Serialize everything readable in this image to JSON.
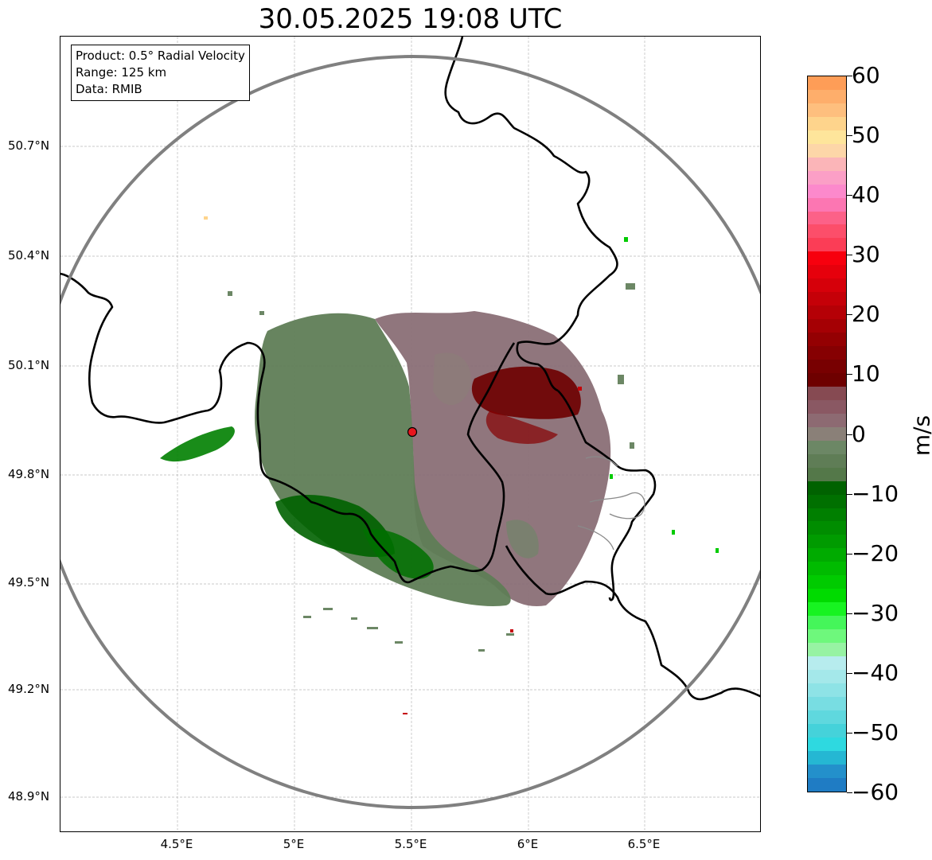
{
  "title": "30.05.2025 19:08 UTC",
  "info": {
    "product": "Product: 0.5° Radial Velocity",
    "range": "Range: 125 km",
    "data": "Data: RMIB"
  },
  "map": {
    "lat_labels": [
      "50.7°N",
      "50.4°N",
      "50.1°N",
      "49.8°N",
      "49.5°N",
      "49.2°N",
      "48.9°N"
    ],
    "lon_labels": [
      "4.5°E",
      "5°E",
      "5.5°E",
      "6°E",
      "6.5°E"
    ],
    "radar_site": {
      "lon": 5.505,
      "lat": 49.914
    },
    "range_ring_color": "#808080",
    "border_color": "#000000",
    "marker_color": "#e8161e"
  },
  "colorbar": {
    "unit": "m/s",
    "min": -60,
    "max": 60,
    "tick_labels": [
      "60",
      "50",
      "40",
      "30",
      "20",
      "10",
      "0",
      "−10",
      "−20",
      "−30",
      "−40",
      "−50",
      "−60"
    ],
    "bands_top_to_bottom": [
      "#fe9d57",
      "#feae6b",
      "#febf7e",
      "#fed48c",
      "#fee59b",
      "#fdd6a8",
      "#fbb5b8",
      "#fb9fc6",
      "#fc89cc",
      "#fc76b2",
      "#fc6188",
      "#fc4e6a",
      "#fb3d56",
      "#f7000e",
      "#e6000c",
      "#d6000a",
      "#c50008",
      "#b50006",
      "#a50004",
      "#940002",
      "#860002",
      "#780001",
      "#6e0000",
      "#864a52",
      "#8a5863",
      "#8d6a72",
      "#8a8078",
      "#6c8765",
      "#5f7d56",
      "#547849",
      "#006200",
      "#007000",
      "#007f00",
      "#008d00",
      "#009b00",
      "#00ab00",
      "#00bb00",
      "#00cb00",
      "#00db00",
      "#17f321",
      "#45f65a",
      "#6ef87c",
      "#97f3a3",
      "#b7ecee",
      "#a4e8ea",
      "#8ee3e6",
      "#78dde2",
      "#5fd8de",
      "#45d2da",
      "#2ed9e0",
      "#25b7d3",
      "#2390cb",
      "#1f7cc4"
    ]
  }
}
